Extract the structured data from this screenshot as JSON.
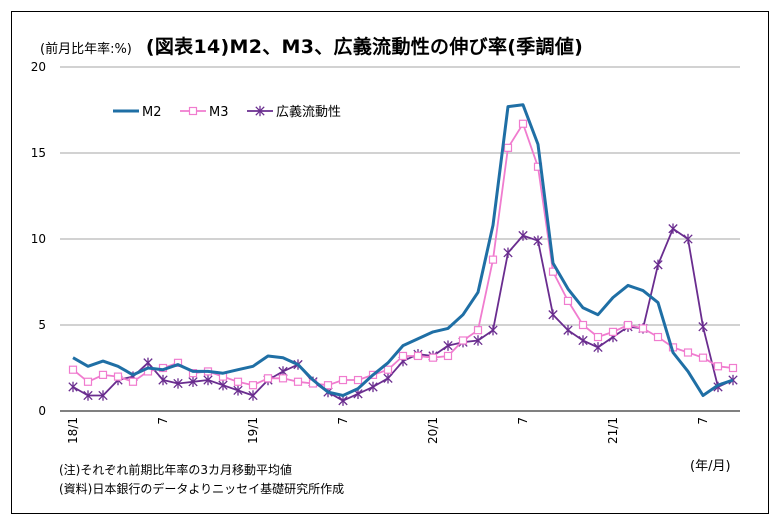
{
  "header": {
    "unit_label": "(前月比年率:%)",
    "title": "(図表14)M2、M3、広義流動性の伸び率(季調値)"
  },
  "x_unit_label": "(年/月)",
  "notes": [
    "(注)それぞれ前期比年率の3カ月移動平均値",
    "(資料)日本銀行のデータよりニッセイ基礎研究所作成"
  ],
  "colors": {
    "M2": "#1f6fa5",
    "M3": "#f07ccf",
    "broad": "#6a2d8f",
    "grid": "#a6a6a6"
  },
  "chart_data": {
    "type": "line",
    "title": "(図表14)M2、M3、広義流動性の伸び率(季調値)",
    "ylabel": "(前月比年率:%)",
    "xlabel": "(年/月)",
    "ylim": [
      0,
      20
    ],
    "yticks": [
      0,
      5,
      10,
      15,
      20
    ],
    "grid": true,
    "legend_position": "top-left",
    "categories": [
      "18/1",
      "2",
      "3",
      "4",
      "5",
      "6",
      "7",
      "8",
      "9",
      "10",
      "11",
      "12",
      "19/1",
      "2",
      "3",
      "4",
      "5",
      "6",
      "7",
      "8",
      "9",
      "10",
      "11",
      "12",
      "20/1",
      "2",
      "3",
      "4",
      "5",
      "6",
      "7",
      "8",
      "9",
      "10",
      "11",
      "12",
      "21/1",
      "2",
      "3",
      "4",
      "5",
      "6",
      "7",
      "8",
      "9"
    ],
    "x_tick_labels": [
      {
        "index": 0,
        "label": "18/1"
      },
      {
        "index": 6,
        "label": "7"
      },
      {
        "index": 12,
        "label": "19/1"
      },
      {
        "index": 18,
        "label": "7"
      },
      {
        "index": 24,
        "label": "20/1"
      },
      {
        "index": 30,
        "label": "7"
      },
      {
        "index": 36,
        "label": "21/1"
      },
      {
        "index": 42,
        "label": "7"
      }
    ],
    "series": [
      {
        "name": "M2",
        "marker": "none",
        "values": [
          3.1,
          2.6,
          2.9,
          2.6,
          2.1,
          2.5,
          2.4,
          2.7,
          2.3,
          2.3,
          2.2,
          2.4,
          2.6,
          3.2,
          3.1,
          2.7,
          1.8,
          1.1,
          0.9,
          1.3,
          2.1,
          2.8,
          3.8,
          4.2,
          4.6,
          4.8,
          5.6,
          6.9,
          10.8,
          17.7,
          17.8,
          15.5,
          8.6,
          7.1,
          6.0,
          5.6,
          6.6,
          7.3,
          7.0,
          6.3,
          3.4,
          2.3,
          0.9,
          1.5,
          1.8
        ]
      },
      {
        "name": "M3",
        "marker": "square",
        "values": [
          2.4,
          1.7,
          2.1,
          2.0,
          1.7,
          2.3,
          2.5,
          2.8,
          2.2,
          2.3,
          2.0,
          1.7,
          1.5,
          1.9,
          1.9,
          1.7,
          1.6,
          1.5,
          1.8,
          1.8,
          2.1,
          2.4,
          3.2,
          3.2,
          3.1,
          3.2,
          4.1,
          4.7,
          8.8,
          15.3,
          16.7,
          14.2,
          8.1,
          6.4,
          5.0,
          4.3,
          4.6,
          5.0,
          4.8,
          4.3,
          3.7,
          3.4,
          3.1,
          2.6,
          2.5
        ]
      },
      {
        "name": "広義流動性",
        "marker": "asterisk",
        "values": [
          1.4,
          0.9,
          0.9,
          1.8,
          2.0,
          2.8,
          1.8,
          1.6,
          1.7,
          1.8,
          1.5,
          1.2,
          0.9,
          1.8,
          2.3,
          2.7,
          1.7,
          1.1,
          0.6,
          1.0,
          1.4,
          1.9,
          2.9,
          3.3,
          3.2,
          3.8,
          4.0,
          4.1,
          4.7,
          9.2,
          10.2,
          9.9,
          5.6,
          4.7,
          4.1,
          3.7,
          4.3,
          4.9,
          4.8,
          8.5,
          10.6,
          10.0,
          4.9,
          1.4,
          1.8
        ]
      }
    ]
  }
}
